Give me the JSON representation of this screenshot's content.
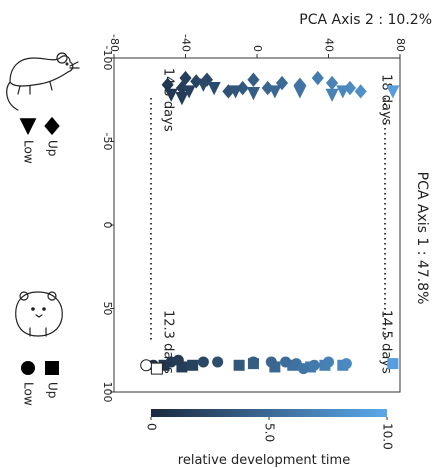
{
  "chart_data": {
    "type": "scatter",
    "orientation": "rotated-90-clockwise",
    "x_axis": {
      "label": "PCA Axis 2 : 10.2%",
      "range": [
        -80,
        80
      ],
      "ticks": [
        -80,
        -40,
        0,
        40,
        80
      ],
      "position": "top"
    },
    "y_axis": {
      "label": "PCA Axis 1 : 47.8%",
      "range": [
        -100,
        100
      ],
      "ticks": [
        -100,
        -50,
        0,
        50,
        100
      ],
      "position": "left"
    },
    "grid": false,
    "series": [
      {
        "group": "mouse",
        "regulation": "up",
        "marker": "diamond",
        "points": [
          [
            -40,
            -88
          ],
          [
            -50,
            -84
          ],
          [
            -42,
            -82
          ],
          [
            -34,
            -86
          ],
          [
            -28,
            -87
          ],
          [
            -16,
            -80
          ],
          [
            -8,
            -82
          ],
          [
            -2,
            -87
          ],
          [
            6,
            -82
          ],
          [
            14,
            -85
          ],
          [
            24,
            -84
          ],
          [
            34,
            -88
          ],
          [
            42,
            -85
          ],
          [
            52,
            -82
          ],
          [
            58,
            -80
          ]
        ]
      },
      {
        "group": "mouse",
        "regulation": "low",
        "marker": "triangle",
        "points": [
          [
            -48,
            -78
          ],
          [
            -42,
            -76
          ],
          [
            -38,
            -80
          ],
          [
            -30,
            -84
          ],
          [
            -24,
            -82
          ],
          [
            -12,
            -80
          ],
          [
            -2,
            -79
          ],
          [
            10,
            -80
          ],
          [
            24,
            -80
          ],
          [
            42,
            -78
          ],
          [
            48,
            -80
          ],
          [
            76,
            -80
          ]
        ]
      },
      {
        "group": "hamster",
        "regulation": "up",
        "marker": "square",
        "points": [
          [
            -52,
            84
          ],
          [
            -42,
            85
          ],
          [
            -36,
            84
          ],
          [
            -10,
            84
          ],
          [
            -2,
            83
          ],
          [
            10,
            85
          ],
          [
            20,
            84
          ],
          [
            30,
            85
          ],
          [
            38,
            84
          ],
          [
            48,
            84
          ],
          [
            76,
            83
          ]
        ]
      },
      {
        "group": "hamster",
        "regulation": "low",
        "marker": "circle",
        "points": [
          [
            -58,
            84
          ],
          [
            -48,
            82
          ],
          [
            -44,
            81
          ],
          [
            -30,
            82
          ],
          [
            -22,
            82
          ],
          [
            -2,
            82
          ],
          [
            8,
            82
          ],
          [
            16,
            82
          ],
          [
            22,
            83
          ],
          [
            26,
            86
          ],
          [
            32,
            84
          ],
          [
            40,
            82
          ],
          [
            50,
            83
          ]
        ]
      }
    ],
    "open_points": [
      {
        "marker": "circle",
        "x": -62,
        "y": 84
      },
      {
        "marker": "square",
        "x": -56,
        "y": 86
      }
    ],
    "annotations": [
      {
        "text": "14.5 days",
        "x": -52,
        "y": -75
      },
      {
        "text": "18 days",
        "x": 70,
        "y": -75
      },
      {
        "text": "12.3 days",
        "x": -52,
        "y": 70
      },
      {
        "text": "14.5 days",
        "x": 70,
        "y": 70
      }
    ],
    "colorbar": {
      "label": "relative development time",
      "range": [
        0,
        10
      ],
      "ticks": [
        "0",
        "5.0",
        "10.0"
      ],
      "color_start": "#1b2a3f",
      "color_end": "#5ba8ea"
    },
    "legend": [
      {
        "group": "mouse",
        "icon": "mouse-icon",
        "entries": [
          {
            "marker": "diamond",
            "label": "Up"
          },
          {
            "marker": "triangle",
            "label": "Low"
          }
        ]
      },
      {
        "group": "hamster",
        "icon": "hamster-icon",
        "entries": [
          {
            "marker": "square",
            "label": "Up"
          },
          {
            "marker": "circle",
            "label": "Low"
          }
        ]
      }
    ]
  }
}
